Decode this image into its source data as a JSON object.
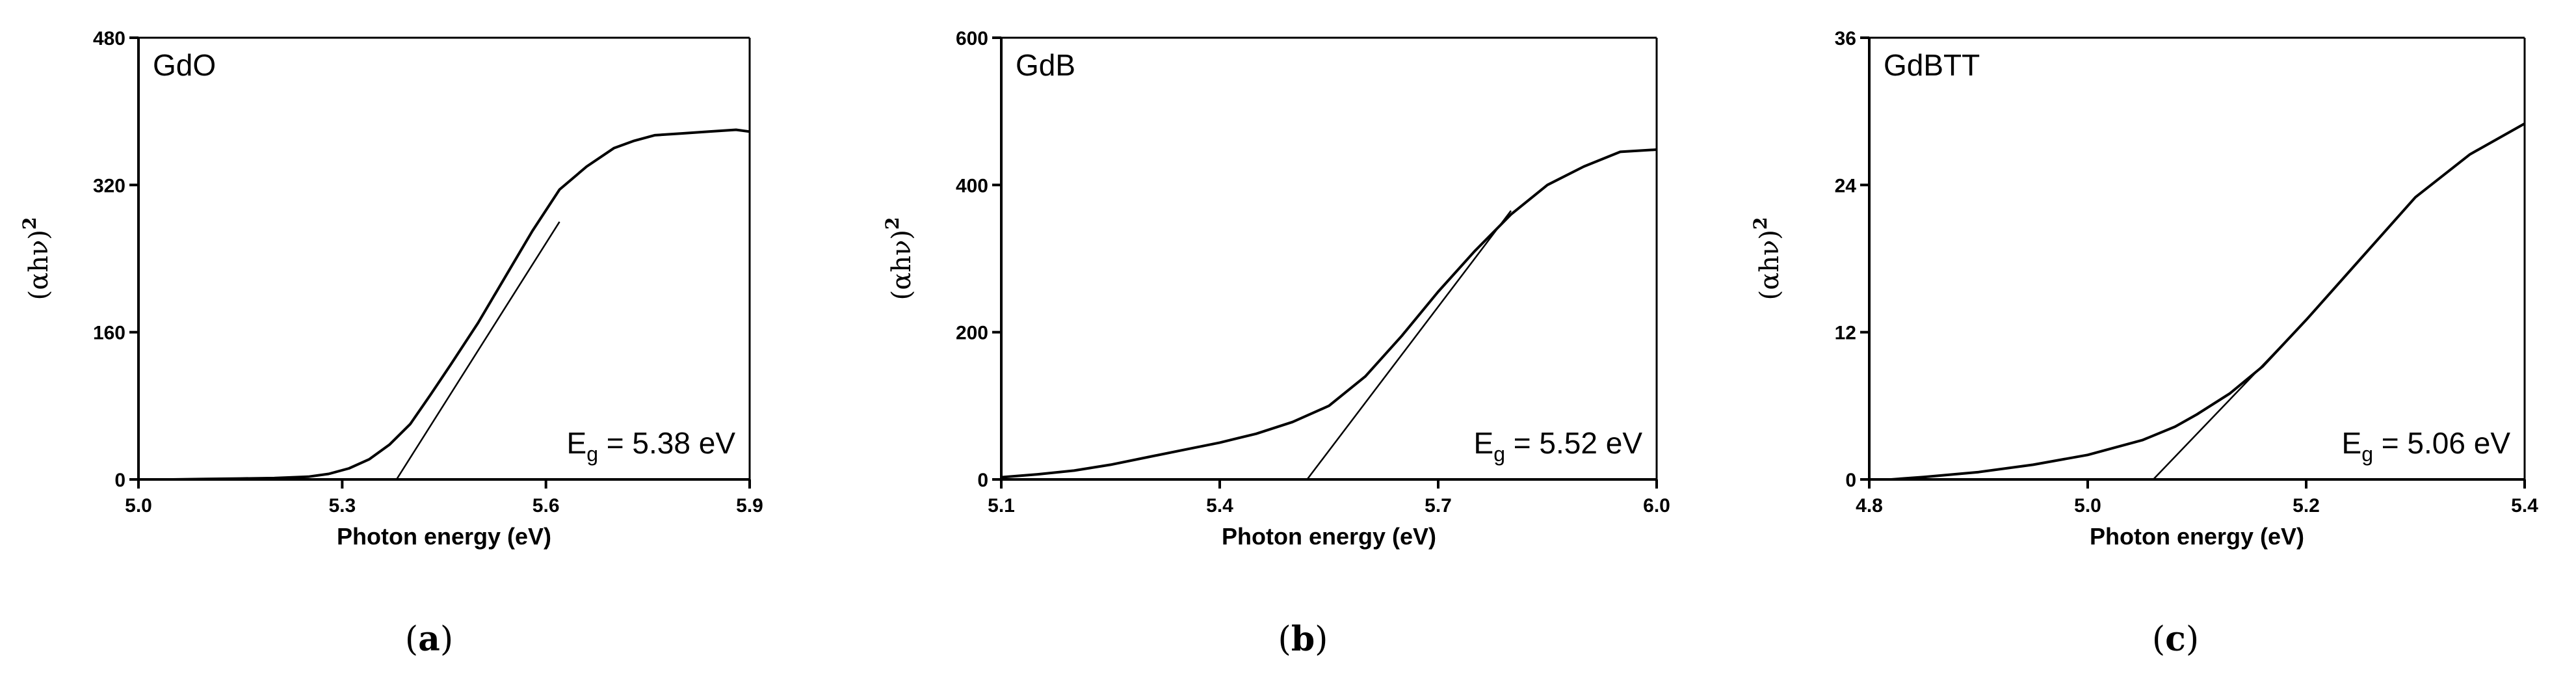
{
  "chart_data": [
    {
      "type": "line",
      "panel_label": "GdO",
      "caption_letter": "a",
      "xlabel": "Photon energy (eV)",
      "ylabel_base": "(αhν)",
      "ylabel_exp": "2",
      "xlim": [
        5.0,
        5.9
      ],
      "ylim": [
        0,
        480
      ],
      "xticks": [
        5.0,
        5.3,
        5.6,
        5.9
      ],
      "xtick_labels": [
        "5.0",
        "5.3",
        "5.6",
        "5.9"
      ],
      "yticks": [
        0,
        160,
        320,
        480
      ],
      "ytick_labels": [
        "0",
        "160",
        "320",
        "480"
      ],
      "eg_prefix": "E",
      "eg_sub": "g",
      "eg_rest": " = 5.38 eV",
      "curve": {
        "x": [
          5.0,
          5.05,
          5.1,
          5.15,
          5.2,
          5.25,
          5.28,
          5.31,
          5.34,
          5.37,
          5.4,
          5.43,
          5.46,
          5.5,
          5.54,
          5.58,
          5.62,
          5.66,
          5.7,
          5.73,
          5.76,
          5.8,
          5.84,
          5.88,
          5.9
        ],
        "y": [
          0,
          0,
          0.5,
          1,
          1.5,
          3,
          6,
          12,
          22,
          38,
          60,
          92,
          125,
          170,
          220,
          270,
          315,
          340,
          360,
          368,
          374,
          376,
          378,
          380,
          378
        ]
      },
      "tangent": {
        "x": [
          5.38,
          5.62
        ],
        "y": [
          0,
          280
        ]
      }
    },
    {
      "type": "line",
      "panel_label": "GdB",
      "caption_letter": "b",
      "xlabel": "Photon energy (eV)",
      "ylabel_base": "(αhν)",
      "ylabel_exp": "2",
      "xlim": [
        5.1,
        6.0
      ],
      "ylim": [
        0,
        600
      ],
      "xticks": [
        5.1,
        5.4,
        5.7,
        6.0
      ],
      "xtick_labels": [
        "5.1",
        "5.4",
        "5.7",
        "6.0"
      ],
      "yticks": [
        0,
        200,
        400,
        600
      ],
      "ytick_labels": [
        "0",
        "200",
        "400",
        "600"
      ],
      "eg_prefix": "E",
      "eg_sub": "g",
      "eg_rest": " = 5.52 eV",
      "curve": {
        "x": [
          5.1,
          5.15,
          5.2,
          5.25,
          5.3,
          5.35,
          5.4,
          5.45,
          5.5,
          5.55,
          5.6,
          5.65,
          5.7,
          5.75,
          5.8,
          5.85,
          5.9,
          5.95,
          6.0
        ],
        "y": [
          3,
          7,
          12,
          20,
          30,
          40,
          50,
          62,
          78,
          100,
          140,
          195,
          255,
          310,
          360,
          400,
          425,
          445,
          448
        ]
      },
      "tangent": {
        "x": [
          5.52,
          5.8
        ],
        "y": [
          0,
          365
        ]
      }
    },
    {
      "type": "line",
      "panel_label": "GdBTT",
      "caption_letter": "c",
      "xlabel": "Photon energy (eV)",
      "ylabel_base": "(αhν)",
      "ylabel_exp": "2",
      "xlim": [
        4.8,
        5.4
      ],
      "ylim": [
        0,
        36
      ],
      "xticks": [
        4.8,
        5.0,
        5.2,
        5.4
      ],
      "xtick_labels": [
        "4.8",
        "5.0",
        "5.2",
        "5.4"
      ],
      "yticks": [
        0,
        12,
        24,
        36
      ],
      "ytick_labels": [
        "0",
        "12",
        "24",
        "36"
      ],
      "eg_prefix": "E",
      "eg_sub": "g",
      "eg_rest": " = 5.06 eV",
      "curve": {
        "x": [
          4.82,
          4.85,
          4.9,
          4.95,
          5.0,
          5.05,
          5.08,
          5.1,
          5.13,
          5.16,
          5.2,
          5.25,
          5.3,
          5.35,
          5.4
        ],
        "y": [
          0,
          0.2,
          0.6,
          1.2,
          2,
          3.2,
          4.3,
          5.3,
          7,
          9.2,
          13,
          18,
          23,
          26.5,
          29
        ]
      },
      "tangent": {
        "x": [
          5.06,
          5.2
        ],
        "y": [
          0,
          13
        ]
      }
    }
  ]
}
